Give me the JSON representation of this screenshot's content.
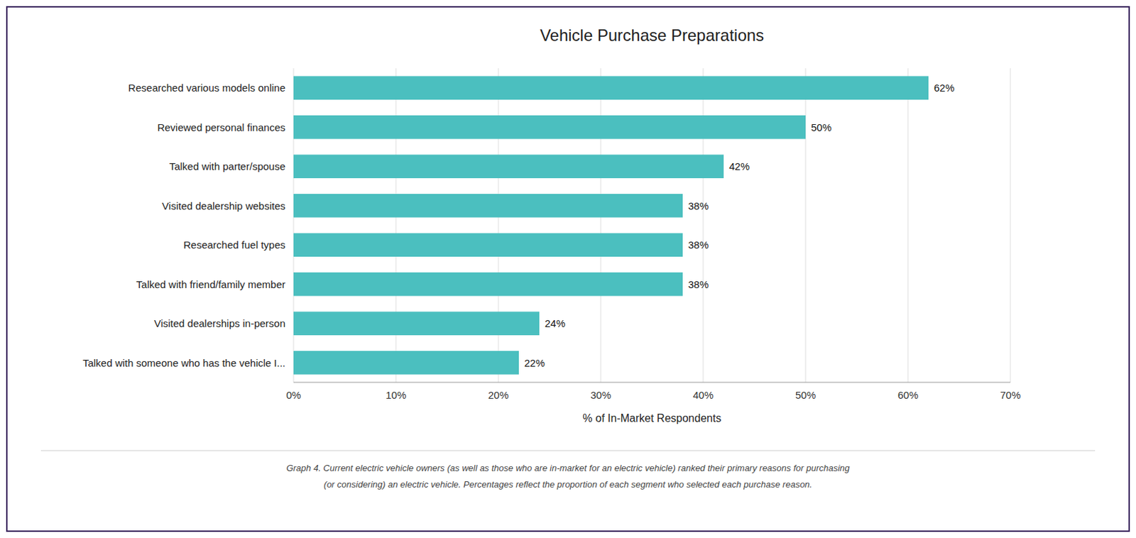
{
  "chart_data": {
    "type": "bar",
    "orientation": "horizontal",
    "title": "Vehicle Purchase Preparations",
    "categories": [
      "Talked with someone who has the vehicle I...",
      "Visited dealerships in-person",
      "Talked with friend/family member",
      "Researched fuel types",
      "Visited dealership websites",
      "Talked with parter/spouse",
      "Reviewed personal finances",
      "Researched various models online"
    ],
    "values": [
      22,
      24,
      38,
      38,
      38,
      42,
      50,
      62
    ],
    "value_labels": [
      "22%",
      "24%",
      "38%",
      "38%",
      "38%",
      "42%",
      "50%",
      "62%"
    ],
    "data_labels": true,
    "color": "#4BBFBF",
    "xlabel": "% of In-Market Respondents",
    "xlim": [
      0,
      70
    ],
    "xticks": [
      {
        "value": 0,
        "label": "0%"
      },
      {
        "value": 10,
        "label": "10%"
      },
      {
        "value": 20,
        "label": "20%"
      },
      {
        "value": 30,
        "label": "30%"
      },
      {
        "value": 40,
        "label": "40%"
      },
      {
        "value": 50,
        "label": "50%"
      },
      {
        "value": 60,
        "label": "60%"
      },
      {
        "value": 70,
        "label": "70%"
      }
    ],
    "grid": true,
    "annotations": [
      "Graph 4. Current electric vehicle owners (as well as those who are in-market for an electric vehicle) ranked their primary reasons for purchasing",
      "(or considering) an electric vehicle. Percentages reflect the proportion of each segment who selected each purchase reason."
    ]
  }
}
